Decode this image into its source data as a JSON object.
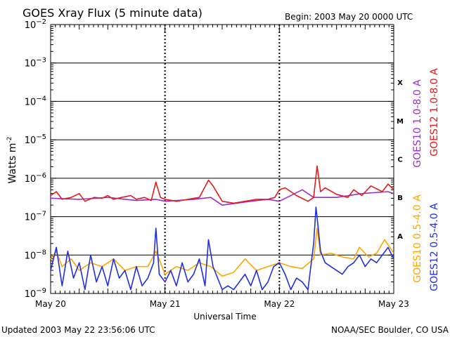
{
  "chart_data": {
    "type": "line",
    "title": "GOES Xray Flux (5 minute data)",
    "begin_label": "Begin:  2003 May 20 0000 UTC",
    "xlabel": "Universal Time",
    "ylabel": "Watts m",
    "ylabel_sup": "-2",
    "x_tick_labels": [
      "May 20",
      "May 21",
      "May 22",
      "May 23"
    ],
    "xlim_days": [
      0,
      3
    ],
    "ylim_exp": [
      -9,
      -2
    ],
    "y_scale": "log",
    "y_tick_exponents": [
      -9,
      -8,
      -7,
      -6,
      -5,
      -4,
      -3,
      -2
    ],
    "y_tick_base": "10",
    "flare_classes": [
      {
        "label": "A",
        "exp": -8
      },
      {
        "label": "B",
        "exp": -7
      },
      {
        "label": "C",
        "exp": -6
      },
      {
        "label": "M",
        "exp": -5
      },
      {
        "label": "X",
        "exp": -4
      }
    ],
    "grid": "horizontal lines at each decade; dotted vertical lines at each day",
    "series": [
      {
        "name": "GOES10 1.0-8.0 A",
        "color": "#9a2fc9",
        "x_days": [
          0,
          0.25,
          0.5,
          0.75,
          0.92,
          1.0,
          1.25,
          1.4,
          1.5,
          1.75,
          1.9,
          2.0,
          2.2,
          2.3,
          2.5,
          2.72,
          2.95,
          3.0
        ],
        "y_exp": [
          -6.52,
          -6.55,
          -6.5,
          -6.58,
          -6.55,
          -6.6,
          -6.55,
          -6.5,
          -6.7,
          -6.6,
          -6.55,
          -6.6,
          -6.3,
          -6.5,
          -6.5,
          -6.4,
          -6.35,
          -6.4
        ]
      },
      {
        "name": "GOES12 1.0-8.0 A",
        "color": "#e41a1c",
        "x_days": [
          0,
          0.05,
          0.1,
          0.18,
          0.25,
          0.3,
          0.38,
          0.45,
          0.5,
          0.55,
          0.62,
          0.7,
          0.75,
          0.82,
          0.88,
          0.92,
          0.96,
          1.0,
          1.1,
          1.2,
          1.3,
          1.38,
          1.42,
          1.5,
          1.6,
          1.7,
          1.8,
          1.9,
          1.96,
          2.0,
          2.05,
          2.15,
          2.25,
          2.3,
          2.33,
          2.36,
          2.4,
          2.5,
          2.6,
          2.65,
          2.72,
          2.8,
          2.9,
          2.95,
          3.0
        ],
        "y_exp": [
          -6.45,
          -6.35,
          -6.55,
          -6.5,
          -6.4,
          -6.6,
          -6.5,
          -6.52,
          -6.45,
          -6.55,
          -6.5,
          -6.45,
          -6.55,
          -6.5,
          -6.58,
          -6.1,
          -6.5,
          -6.55,
          -6.6,
          -6.55,
          -6.5,
          -6.05,
          -6.2,
          -6.6,
          -6.65,
          -6.6,
          -6.55,
          -6.55,
          -6.5,
          -6.3,
          -6.25,
          -6.45,
          -6.6,
          -6.5,
          -5.68,
          -6.35,
          -6.25,
          -6.42,
          -6.5,
          -6.3,
          -6.45,
          -6.2,
          -6.35,
          -6.15,
          -6.3
        ]
      },
      {
        "name": "GOES10 0.5-4.0 A",
        "color": "#ffa500",
        "x_days": [
          0,
          0.05,
          0.1,
          0.18,
          0.25,
          0.35,
          0.45,
          0.55,
          0.65,
          0.75,
          0.85,
          0.92,
          1.0,
          1.1,
          1.2,
          1.3,
          1.4,
          1.5,
          1.6,
          1.7,
          1.8,
          1.9,
          2.0,
          2.1,
          2.2,
          2.3,
          2.33,
          2.36,
          2.45,
          2.55,
          2.65,
          2.7,
          2.78,
          2.85,
          2.92,
          3.0
        ],
        "y_exp": [
          -8.1,
          -7.9,
          -8.3,
          -8.1,
          -8.4,
          -8.2,
          -8.3,
          -8.1,
          -8.4,
          -8.3,
          -8.3,
          -7.9,
          -8.5,
          -8.3,
          -8.4,
          -8.2,
          -8.3,
          -8.55,
          -8.45,
          -8.1,
          -8.4,
          -8.3,
          -8.2,
          -8.3,
          -8.35,
          -8.1,
          -7.3,
          -8.0,
          -7.95,
          -8.05,
          -8.1,
          -7.8,
          -8.05,
          -7.95,
          -7.6,
          -7.95
        ]
      },
      {
        "name": "GOES12 0.5-4.0 A",
        "color": "#1f2fe6",
        "x_days": [
          0,
          0.05,
          0.1,
          0.15,
          0.2,
          0.25,
          0.3,
          0.35,
          0.4,
          0.45,
          0.5,
          0.55,
          0.6,
          0.65,
          0.7,
          0.75,
          0.8,
          0.85,
          0.9,
          0.92,
          0.95,
          1.0,
          1.05,
          1.1,
          1.15,
          1.2,
          1.25,
          1.3,
          1.35,
          1.38,
          1.42,
          1.5,
          1.55,
          1.6,
          1.65,
          1.7,
          1.75,
          1.8,
          1.85,
          1.9,
          1.95,
          2.0,
          2.05,
          2.1,
          2.15,
          2.2,
          2.25,
          2.3,
          2.32,
          2.34,
          2.36,
          2.4,
          2.45,
          2.5,
          2.55,
          2.6,
          2.65,
          2.7,
          2.75,
          2.8,
          2.85,
          2.9,
          2.95,
          3.0
        ],
        "y_exp": [
          -8.4,
          -7.8,
          -8.8,
          -7.9,
          -8.6,
          -8.2,
          -8.9,
          -8.0,
          -8.7,
          -8.3,
          -8.8,
          -8.1,
          -8.6,
          -8.4,
          -8.9,
          -8.3,
          -8.8,
          -8.6,
          -8.2,
          -7.3,
          -8.5,
          -8.7,
          -8.4,
          -8.8,
          -8.2,
          -8.7,
          -8.5,
          -8.1,
          -8.8,
          -7.6,
          -8.3,
          -8.9,
          -8.8,
          -8.9,
          -8.7,
          -8.5,
          -8.8,
          -8.4,
          -8.9,
          -8.7,
          -8.3,
          -8.2,
          -8.5,
          -8.9,
          -8.6,
          -8.7,
          -8.9,
          -7.7,
          -6.75,
          -7.3,
          -7.9,
          -8.2,
          -8.3,
          -8.4,
          -8.5,
          -8.3,
          -8.2,
          -8.0,
          -8.3,
          -8.1,
          -8.2,
          -8.0,
          -7.8,
          -8.1
        ]
      }
    ]
  },
  "footer": {
    "updated": "Updated 2003 May 22 23:56:06 UTC",
    "credit": "NOAA/SEC Boulder, CO USA"
  }
}
